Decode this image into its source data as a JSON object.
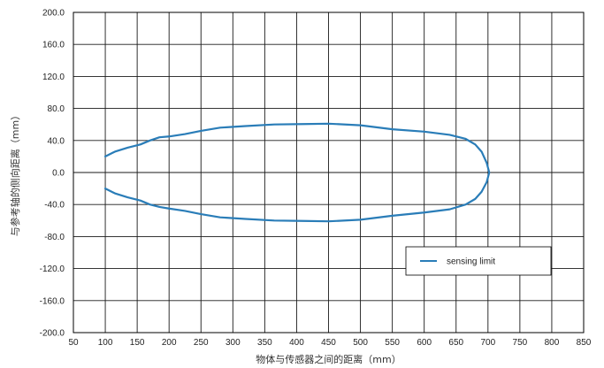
{
  "chart_data": {
    "type": "line",
    "xlabel": "物体与传感器之间的距离（mm）",
    "ylabel": "与参考轴的侧向距离（mm）",
    "xlim": [
      50,
      850
    ],
    "ylim": [
      -200,
      200
    ],
    "x_ticks": [
      "50",
      "100",
      "150",
      "200",
      "250",
      "300",
      "350",
      "400",
      "450",
      "500",
      "550",
      "600",
      "650",
      "700",
      "750",
      "800",
      "850"
    ],
    "y_ticks": [
      "200.0",
      "160.0",
      "120.0",
      "80.0",
      "40.0",
      "0.0",
      "-40.0",
      "-80.0",
      "-120.0",
      "-160.0",
      "-200.0"
    ],
    "grid": true,
    "legend_position": "lower-right",
    "colors": {
      "series": "#2a7db8",
      "grid": "#1a1a1a",
      "frame": "#000000"
    },
    "series": [
      {
        "name": "sensing limit",
        "points": [
          [
            100,
            20
          ],
          [
            115,
            26
          ],
          [
            135,
            31
          ],
          [
            155,
            35
          ],
          [
            170,
            40
          ],
          [
            185,
            44
          ],
          [
            200,
            45
          ],
          [
            225,
            48
          ],
          [
            250,
            52
          ],
          [
            280,
            56
          ],
          [
            320,
            58
          ],
          [
            365,
            60
          ],
          [
            410,
            60.5
          ],
          [
            450,
            61
          ],
          [
            500,
            59
          ],
          [
            550,
            54
          ],
          [
            600,
            51
          ],
          [
            640,
            47
          ],
          [
            665,
            42
          ],
          [
            680,
            35
          ],
          [
            690,
            26
          ],
          [
            698,
            12
          ],
          [
            702,
            0
          ],
          [
            698,
            -12
          ],
          [
            690,
            -24
          ],
          [
            680,
            -33
          ],
          [
            665,
            -40
          ],
          [
            640,
            -46
          ],
          [
            600,
            -50
          ],
          [
            550,
            -54
          ],
          [
            500,
            -59
          ],
          [
            450,
            -61
          ],
          [
            410,
            -60.5
          ],
          [
            365,
            -60
          ],
          [
            320,
            -58
          ],
          [
            280,
            -56
          ],
          [
            250,
            -52
          ],
          [
            225,
            -48
          ],
          [
            200,
            -45
          ],
          [
            185,
            -43
          ],
          [
            170,
            -40
          ],
          [
            155,
            -35
          ],
          [
            135,
            -31
          ],
          [
            115,
            -26
          ],
          [
            100,
            -20
          ]
        ]
      }
    ]
  }
}
